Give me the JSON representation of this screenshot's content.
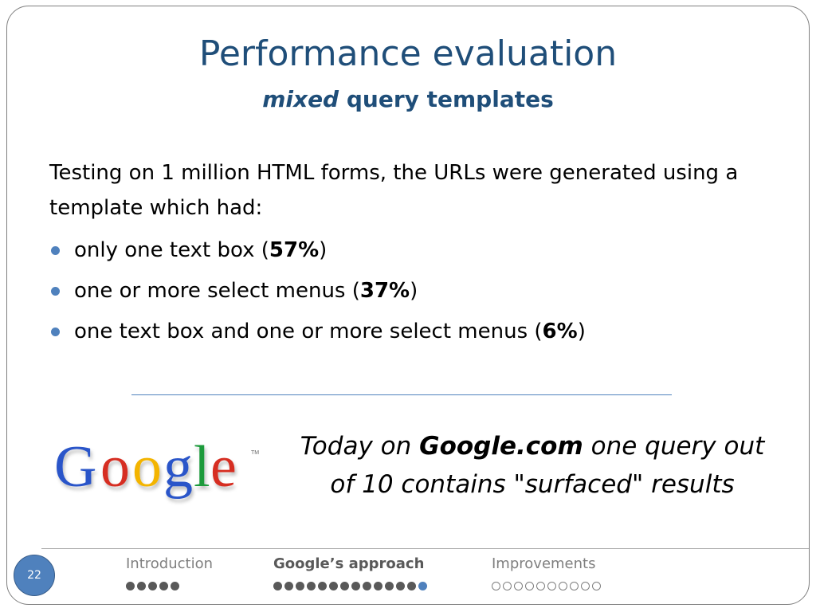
{
  "slide": {
    "title": "Performance evaluation",
    "subtitle_italic": "mixed",
    "subtitle_rest": " query templates",
    "intro": "Testing on 1 million HTML forms, the URLs were generated using a template which had:",
    "bullets": [
      {
        "text": "only one text box (",
        "value": "57%",
        "close": ")"
      },
      {
        "text": "one or more select menus (",
        "value": "37%",
        "close": ")"
      },
      {
        "text": "one text box and one or more select menus (",
        "value": "6%",
        "close": ")"
      }
    ],
    "quote": {
      "pre": "Today on ",
      "bold": "Google.com",
      "post": " one query out of 10 contains \"surfaced\" results"
    },
    "logo": {
      "text": "Google",
      "trademark": "TM"
    },
    "page_number": "22"
  },
  "footer": {
    "sections": [
      {
        "label": "Introduction",
        "filled": 5,
        "current": 0,
        "empty": 0
      },
      {
        "label": "Google’s approach",
        "filled": 13,
        "current": 1,
        "empty": 0
      },
      {
        "label": "Improvements",
        "filled": 0,
        "current": 0,
        "empty": 10
      }
    ]
  },
  "colors": {
    "title": "#1f4e79",
    "accent": "#4f81bd",
    "google_blue": "#2a55c9",
    "google_red": "#d62d20",
    "google_yellow": "#f3b400",
    "google_green": "#1a9a3a"
  }
}
